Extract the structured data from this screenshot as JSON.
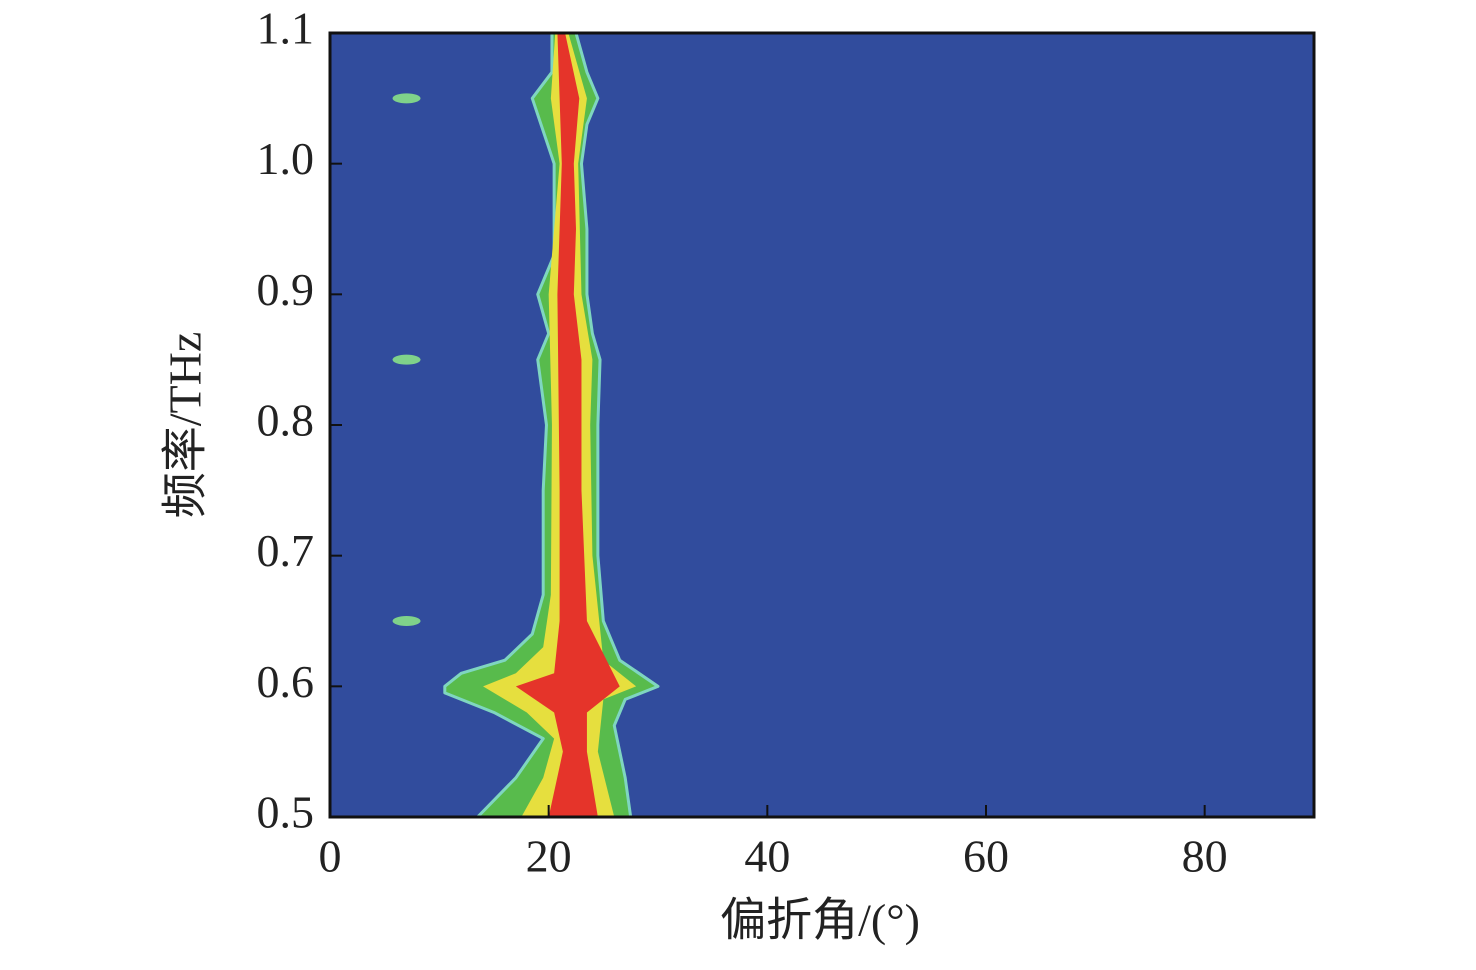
{
  "chart_data": {
    "type": "contour",
    "xlabel": "偏折角/(°)",
    "ylabel": "频率/THz",
    "xlim": [
      0,
      90
    ],
    "ylim": [
      0.5,
      1.1
    ],
    "xticks": [
      0,
      20,
      40,
      60,
      80
    ],
    "yticks": [
      0.5,
      0.6,
      0.7,
      0.8,
      0.9,
      {
        "value": 1,
        "label": "1.0"
      },
      1.1
    ],
    "background": "#314c9d",
    "levels": [
      {
        "color": "#58bb4c",
        "x": [
          13.5,
          17,
          19.5,
          15,
          10.5,
          10.5,
          12,
          16,
          18.5,
          19.5,
          19.5,
          19.8,
          19,
          20,
          19,
          20.5,
          20.5,
          20.5,
          18.5,
          20.3,
          20.3,
          22.5,
          23.5,
          24.5,
          23.5,
          23,
          23.5,
          23.5,
          24,
          24.7,
          24.5,
          24.5,
          25,
          26.5,
          30,
          27,
          26,
          27,
          27.5
        ],
        "y": [
          0.5,
          0.53,
          0.56,
          0.58,
          0.595,
          0.6,
          0.61,
          0.62,
          0.64,
          0.67,
          0.75,
          0.8,
          0.85,
          0.87,
          0.9,
          0.93,
          0.95,
          1.0,
          1.05,
          1.07,
          1.1,
          1.1,
          1.07,
          1.05,
          1.03,
          1.0,
          0.95,
          0.9,
          0.87,
          0.85,
          0.8,
          0.7,
          0.65,
          0.62,
          0.6,
          0.59,
          0.57,
          0.53,
          0.5
        ]
      },
      {
        "color": "#e6df3e",
        "x": [
          17.5,
          19.5,
          20.5,
          18,
          14,
          17,
          19.5,
          20.2,
          20.3,
          20,
          21,
          20.2,
          20.6,
          21.8,
          23.5,
          22.7,
          23,
          24,
          23.8,
          24,
          25,
          28,
          25,
          24.5,
          26
        ],
        "y": [
          0.5,
          0.53,
          0.56,
          0.58,
          0.6,
          0.61,
          0.63,
          0.67,
          0.8,
          0.9,
          1.0,
          1.05,
          1.1,
          1.1,
          1.05,
          1.0,
          0.9,
          0.85,
          0.8,
          0.7,
          0.62,
          0.6,
          0.59,
          0.55,
          0.5
        ]
      },
      {
        "color": "#e5342a",
        "x": [
          20,
          21.3,
          20.5,
          17,
          20.5,
          21,
          21,
          20.8,
          21.2,
          21,
          20.8,
          21.5,
          22.8,
          22.3,
          22.5,
          22.3,
          23,
          23,
          23.5,
          26.5,
          23.5,
          23.5,
          24.5
        ],
        "y": [
          0.5,
          0.55,
          0.58,
          0.6,
          0.61,
          0.65,
          0.75,
          0.9,
          1.0,
          1.05,
          1.1,
          1.1,
          1.05,
          1.0,
          0.95,
          0.9,
          0.85,
          0.75,
          0.65,
          0.6,
          0.58,
          0.55,
          0.5
        ]
      }
    ],
    "spots": {
      "color": "#7fd28a",
      "x": [
        7,
        7,
        7
      ],
      "y": [
        1.05,
        0.85,
        0.65
      ]
    }
  }
}
